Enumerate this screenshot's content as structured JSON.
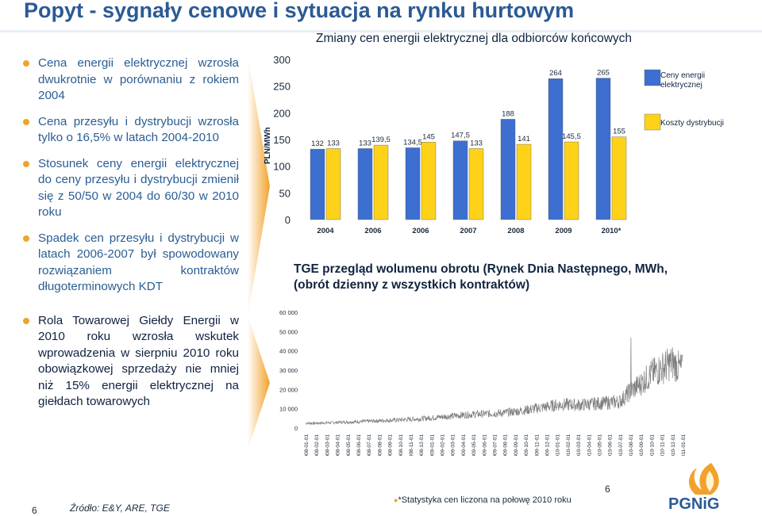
{
  "slide": {
    "title": "Popyt - sygnały cenowe i sytuacja na rynku hurtowym",
    "page_number": "6",
    "center_page_number": "6",
    "source": "Źródło: E&Y, ARE, TGE",
    "footnote": "*Statystyka cen liczona na połowę 2010 roku",
    "logo_text": "PGNiG"
  },
  "bullets": [
    {
      "text": "Cena energii elektrycznej wzrosła dwukrotnie w porównaniu z rokiem 2004"
    },
    {
      "text": "Cena przesyłu i dystrybucji wzrosła tylko o 16,5% w latach 2004-2010"
    },
    {
      "text": "Stosunek ceny energii elektrycznej do ceny przesyłu i dystrybucji zmienił się z 50/50 w 2004 do 60/30 w 2010 roku"
    },
    {
      "text": "Spadek cen przesyłu i dystrybucji w latach 2006-2007 był spowodowany rozwiązaniem kontraktów długoterminowych KDT"
    },
    {
      "text": "Rola Towarowej Giełdy Energii w 2010 roku wzrosła wskutek wprowadzenia w sierpniu 2010 roku obowiązkowej sprzedaży nie mniej niż 15% energii elektrycznej na giełdach towarowych"
    }
  ],
  "colors": {
    "title": "#2b5a94",
    "bar_blue": "#3c6fd0",
    "bar_yellow": "#ffd21a",
    "accent_orange": "#f2a22b",
    "tge_line": "#7f7f7f"
  },
  "chart_data": [
    {
      "type": "bar",
      "title": "Zmiany cen energii elektrycznej dla odbiorców końcowych",
      "ylabel": "PLN/MWh",
      "ylim": [
        0,
        300
      ],
      "yticks": [
        "0",
        "50",
        "100",
        "150",
        "200",
        "250",
        "300"
      ],
      "categories": [
        "2004",
        "2006",
        "2006",
        "2007",
        "2008",
        "2009",
        "2010*"
      ],
      "series": [
        {
          "name": "Ceny energii elektrycznej",
          "values": [
            132,
            133,
            134.5,
            147.5,
            188,
            264,
            265
          ],
          "labels": [
            "132",
            "133",
            "134,5",
            "147,5",
            "188",
            "264",
            "265"
          ],
          "color": "#3c6fd0"
        },
        {
          "name": "Koszty dystrybucji",
          "values": [
            133,
            139.5,
            145,
            133,
            141,
            145.5,
            155
          ],
          "labels": [
            "133",
            "139,5",
            "145",
            "133",
            "141",
            "145,5",
            "155"
          ],
          "color": "#ffd21a"
        }
      ],
      "legend": "right"
    },
    {
      "type": "line",
      "title": "TGE przegląd wolumenu obrotu (Rynek Dnia Następnego, MWh, (obrót dzienny z wszystkich kontraktów)",
      "ylim": [
        0,
        60000
      ],
      "yticks": [
        "0",
        "10 000",
        "20 000",
        "30 000",
        "40 000",
        "50 000",
        "60 000"
      ],
      "xticks": [
        "2008-01-01",
        "2008-02-01",
        "2008-03-01",
        "2008-04-01",
        "2008-05-01",
        "2008-06-01",
        "2008-07-01",
        "2008-08-01",
        "2008-09-01",
        "2008-10-01",
        "2008-11-01",
        "2008-12-01",
        "2009-01-01",
        "2009-02-01",
        "2009-03-01",
        "2009-04-01",
        "2009-05-01",
        "2009-06-01",
        "2009-07-01",
        "2009-08-01",
        "2009-09-01",
        "2009-10-01",
        "2009-11-01",
        "2009-12-01",
        "2010-01-01",
        "2010-02-01",
        "2010-03-01",
        "2010-04-01",
        "2010-05-01",
        "2010-06-01",
        "2010-07-01",
        "2010-08-01",
        "2010-09-01",
        "2010-10-01",
        "2010-11-01",
        "2010-12-01",
        "2011-01-01"
      ],
      "monthly_levels": [
        2500,
        2500,
        2700,
        2900,
        3100,
        3300,
        3500,
        3800,
        4000,
        4200,
        4500,
        4800,
        5300,
        5800,
        6200,
        6700,
        7100,
        7300,
        7600,
        7900,
        8500,
        9300,
        10200,
        11000,
        12000,
        12200,
        11900,
        12300,
        12800,
        13200,
        13700,
        19000,
        23000,
        28000,
        31000,
        34000,
        30000
      ],
      "peak": 47000
    }
  ]
}
